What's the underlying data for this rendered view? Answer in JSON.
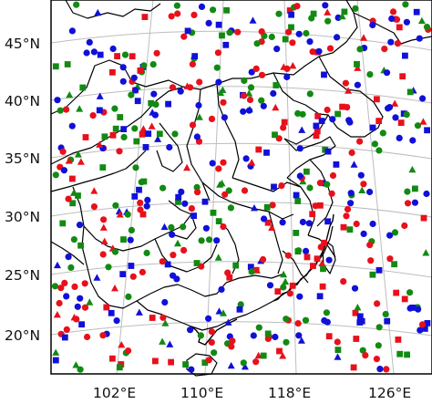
{
  "map": {
    "colors": {
      "red": "#e8101b",
      "green": "#128a12",
      "blue": "#1010d8",
      "border": "#000000",
      "graticule": "#bdbdbd",
      "frame": "#000000"
    },
    "lat_labels": [
      "45°N",
      "40°N",
      "35°N",
      "30°N",
      "25°N",
      "20°N"
    ],
    "lon_labels": [
      "102°E",
      "110°E",
      "118°E",
      "126°E"
    ],
    "marker_shapes": [
      "circle",
      "square",
      "triangle"
    ],
    "projection": "conic"
  }
}
